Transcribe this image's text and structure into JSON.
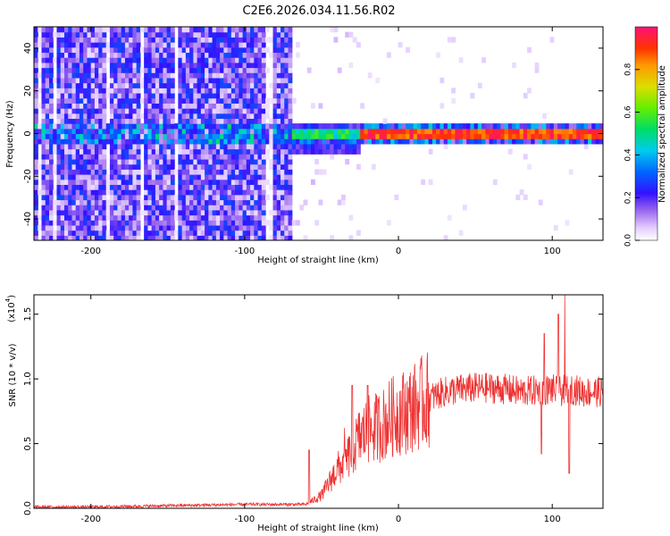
{
  "title": "C2E6.2026.034.11.56.R02",
  "chart_data": [
    {
      "type": "heatmap",
      "xlabel": "Height of straight line (km)",
      "ylabel": "Frequency (Hz)",
      "xlim": [
        -237,
        133
      ],
      "ylim": [
        -50,
        50
      ],
      "xticks": [
        -200,
        -100,
        0,
        100
      ],
      "yticks": [
        -40,
        -20,
        0,
        20,
        40
      ],
      "colorbar": {
        "label": "Normalized spectral amplitude",
        "range": [
          0,
          1
        ],
        "ticks": [
          0.0,
          0.2,
          0.4,
          0.6,
          0.8
        ]
      },
      "regions": [
        {
          "x": [
            -237,
            -70
          ],
          "description": "broadband noise, amplitude ~0.05-0.3 across all frequencies"
        },
        {
          "x": [
            -70,
            -25
          ],
          "description": "signal near 0 Hz, amplitude ~0.3-0.6, spread -10 to 5 Hz"
        },
        {
          "x": [
            -25,
            133
          ],
          "description": "narrow signal at 0 Hz, amplitude ~0.8-1.0"
        }
      ],
      "grid": false
    },
    {
      "type": "line",
      "xlabel": "Height of straight line (km)",
      "ylabel": "SNR (10 * v/v)",
      "yscale_label": "(x10",
      "yscale_exp": "4",
      "xlim": [
        -237,
        133
      ],
      "ylim": [
        0,
        1.65
      ],
      "xticks": [
        -200,
        -100,
        0,
        100
      ],
      "yticks": [
        0.0,
        0.5,
        1.0,
        1.5
      ],
      "color": "#ee3333",
      "series": [
        {
          "x": [
            -237,
            -200,
            -150,
            -100,
            -80,
            -60,
            -50,
            -45,
            -40,
            -35,
            -30,
            -25,
            -20,
            -15,
            -10,
            -5,
            0,
            10,
            20,
            30,
            40,
            50,
            60,
            70,
            80,
            90,
            100,
            105,
            110,
            120,
            133
          ],
          "values": [
            0.01,
            0.01,
            0.02,
            0.03,
            0.03,
            0.03,
            0.1,
            0.2,
            0.3,
            0.35,
            0.45,
            0.55,
            0.6,
            0.62,
            0.65,
            0.7,
            0.73,
            0.78,
            0.85,
            0.9,
            0.92,
            0.93,
            0.93,
            0.92,
            0.9,
            0.91,
            0.92,
            0.9,
            0.93,
            0.9,
            0.9
          ]
        }
      ],
      "spikes": [
        {
          "x": -58,
          "y": 0.45
        },
        {
          "x": -35,
          "y": 0.62
        },
        {
          "x": -30,
          "y": 0.95
        },
        {
          "x": -20,
          "y": 0.95
        },
        {
          "x": 95,
          "y": 1.35
        },
        {
          "x": 104,
          "y": 1.5
        },
        {
          "x": 108,
          "y": 1.65
        },
        {
          "x": 111,
          "y": 1.65
        },
        {
          "x": 111,
          "y": 0.27
        },
        {
          "x": 93,
          "y": 0.42
        }
      ],
      "grid": false
    }
  ]
}
